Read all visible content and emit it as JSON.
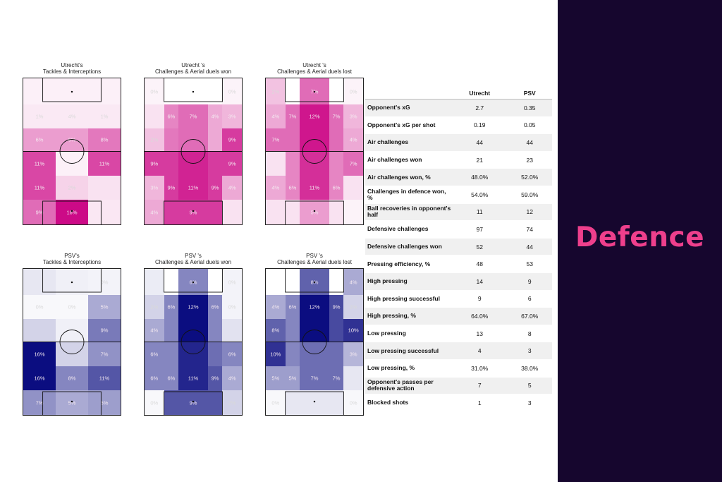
{
  "brand": {
    "title": "Defence"
  },
  "panels": [
    {
      "title_line1": "Utrecht's",
      "title_line2": "Tackles & Interceptions",
      "team": "utrecht",
      "rows": [
        [
          {
            "v": "",
            "s": 0.06
          },
          {
            "v": "",
            "s": 0.06
          },
          {
            "v": "",
            "s": 0.06
          }
        ],
        [
          {
            "v": "1%",
            "s": 0.09
          },
          {
            "v": "4%",
            "s": 0.09
          },
          {
            "v": "1%",
            "s": 0.09
          }
        ],
        [
          {
            "v": "6%",
            "s": 0.4
          },
          {
            "v": "6%",
            "s": 0.4
          },
          {
            "v": "8%",
            "s": 0.55
          }
        ],
        [
          {
            "v": "11%",
            "s": 0.75
          },
          {
            "v": "",
            "s": 0.06
          },
          {
            "v": "11%",
            "s": 0.75
          }
        ],
        [
          {
            "v": "11%",
            "s": 0.75
          },
          {
            "v": "2%",
            "s": 0.18
          },
          {
            "v": "",
            "s": 0.12
          }
        ],
        [
          {
            "v": "9%",
            "s": 0.6
          },
          {
            "v": "18%",
            "s": 1.0
          },
          {
            "v": "",
            "s": 0.1
          }
        ]
      ]
    },
    {
      "title_line1": "Utrecht 's",
      "title_line2": "Challenges & Aerial duels won",
      "team": "utrecht",
      "rows": [
        [
          {
            "v": "0%",
            "s": 0.05
          },
          {
            "v": "",
            "s": 0.0
          },
          {
            "v": "",
            "s": 0.0
          },
          {
            "v": "",
            "s": 0.0
          },
          {
            "v": "0%",
            "s": 0.05
          }
        ],
        [
          {
            "v": "",
            "s": 0.12
          },
          {
            "v": "6%",
            "s": 0.5
          },
          {
            "v": "7%",
            "s": 0.6
          },
          {
            "v": "4%",
            "s": 0.35
          },
          {
            "v": "3%",
            "s": 0.3
          }
        ],
        [
          {
            "v": "2%",
            "s": 0.25
          },
          {
            "v": "",
            "s": 0.55
          },
          {
            "v": "",
            "s": 0.6
          },
          {
            "v": "",
            "s": 0.35
          },
          {
            "v": "9%",
            "s": 0.8
          }
        ],
        [
          {
            "v": "9%",
            "s": 0.8
          },
          {
            "v": "",
            "s": 0.8
          },
          {
            "v": "",
            "s": 0.9
          },
          {
            "v": "",
            "s": 0.8
          },
          {
            "v": "9%",
            "s": 0.8
          }
        ],
        [
          {
            "v": "3%",
            "s": 0.3
          },
          {
            "v": "9%",
            "s": 0.8
          },
          {
            "v": "11%",
            "s": 0.9
          },
          {
            "v": "9%",
            "s": 0.8
          },
          {
            "v": "4%",
            "s": 0.35
          }
        ],
        [
          {
            "v": "4%",
            "s": 0.35
          },
          {
            "v": "",
            "s": 0.8
          },
          {
            "v": "9%",
            "s": 0.8
          },
          {
            "v": "",
            "s": 0.8
          },
          {
            "v": "",
            "s": 0.12
          }
        ]
      ]
    },
    {
      "title_line1": "Utrecht 's",
      "title_line2": "Challenges & Aerial duels lost",
      "team": "utrecht",
      "rows": [
        [
          {
            "v": "2%",
            "s": 0.25
          },
          {
            "v": "",
            "s": 0.0
          },
          {
            "v": "7%",
            "s": 0.6
          },
          {
            "v": "",
            "s": 0.0
          },
          {
            "v": "0%",
            "s": 0.05
          }
        ],
        [
          {
            "v": "4%",
            "s": 0.35
          },
          {
            "v": "7%",
            "s": 0.6
          },
          {
            "v": "12%",
            "s": 0.95
          },
          {
            "v": "7%",
            "s": 0.6
          },
          {
            "v": "3%",
            "s": 0.3
          }
        ],
        [
          {
            "v": "7%",
            "s": 0.6
          },
          {
            "v": "",
            "s": 0.6
          },
          {
            "v": "",
            "s": 0.95
          },
          {
            "v": "",
            "s": 0.6
          },
          {
            "v": "4%",
            "s": 0.35
          }
        ],
        [
          {
            "v": "",
            "s": 0.12
          },
          {
            "v": "",
            "s": 0.5
          },
          {
            "v": "",
            "s": 0.85
          },
          {
            "v": "",
            "s": 0.5
          },
          {
            "v": "7%",
            "s": 0.6
          }
        ],
        [
          {
            "v": "4%",
            "s": 0.35
          },
          {
            "v": "6%",
            "s": 0.5
          },
          {
            "v": "11%",
            "s": 0.85
          },
          {
            "v": "6%",
            "s": 0.5
          },
          {
            "v": "",
            "s": 0.12
          }
        ],
        [
          {
            "v": "",
            "s": 0.12
          },
          {
            "v": "",
            "s": 0.12
          },
          {
            "v": "5%",
            "s": 0.4
          },
          {
            "v": "",
            "s": 0.12
          },
          {
            "v": "",
            "s": 0.05
          }
        ]
      ]
    },
    {
      "title_line1": "PSV's",
      "title_line2": "Tackles & Interceptions",
      "team": "psv",
      "rows": [
        [
          {
            "v": "",
            "s": 0.1
          },
          {
            "v": "",
            "s": 0.06
          },
          {
            "v": "0%",
            "s": 0.05
          }
        ],
        [
          {
            "v": "0%",
            "s": 0.03
          },
          {
            "v": "0%",
            "s": 0.03
          },
          {
            "v": "5%",
            "s": 0.35
          }
        ],
        [
          {
            "v": "",
            "s": 0.18
          },
          {
            "v": "",
            "s": 0.06
          },
          {
            "v": "9%",
            "s": 0.55
          }
        ],
        [
          {
            "v": "16%",
            "s": 1.0
          },
          {
            "v": "",
            "s": 0.18
          },
          {
            "v": "7%",
            "s": 0.45
          }
        ],
        [
          {
            "v": "16%",
            "s": 1.0
          },
          {
            "v": "8%",
            "s": 0.5
          },
          {
            "v": "11%",
            "s": 0.7
          }
        ],
        [
          {
            "v": "7%",
            "s": 0.45
          },
          {
            "v": "5%",
            "s": 0.35
          },
          {
            "v": "6%",
            "s": 0.4
          }
        ]
      ]
    },
    {
      "title_line1": "PSV 's",
      "title_line2": "Challenges & Aerial duels won",
      "team": "psv",
      "rows": [
        [
          {
            "v": "",
            "s": 0.08
          },
          {
            "v": "",
            "s": 0.0
          },
          {
            "v": "6%",
            "s": 0.5
          },
          {
            "v": "",
            "s": 0.0
          },
          {
            "v": "0%",
            "s": 0.05
          }
        ],
        [
          {
            "v": "2%",
            "s": 0.18
          },
          {
            "v": "6%",
            "s": 0.5
          },
          {
            "v": "12%",
            "s": 1.0
          },
          {
            "v": "6%",
            "s": 0.5
          },
          {
            "v": "0%",
            "s": 0.05
          }
        ],
        [
          {
            "v": "4%",
            "s": 0.35
          },
          {
            "v": "",
            "s": 0.5
          },
          {
            "v": "",
            "s": 1.0
          },
          {
            "v": "",
            "s": 0.5
          },
          {
            "v": "",
            "s": 0.12
          }
        ],
        [
          {
            "v": "6%",
            "s": 0.5
          },
          {
            "v": "",
            "s": 0.5
          },
          {
            "v": "",
            "s": 0.9
          },
          {
            "v": "",
            "s": 0.6
          },
          {
            "v": "6%",
            "s": 0.5
          }
        ],
        [
          {
            "v": "6%",
            "s": 0.5
          },
          {
            "v": "6%",
            "s": 0.5
          },
          {
            "v": "11%",
            "s": 0.9
          },
          {
            "v": "9%",
            "s": 0.7
          },
          {
            "v": "4%",
            "s": 0.35
          }
        ],
        [
          {
            "v": "0%",
            "s": 0.03
          },
          {
            "v": "",
            "s": 0.7
          },
          {
            "v": "9%",
            "s": 0.7
          },
          {
            "v": "",
            "s": 0.7
          },
          {
            "v": "2%",
            "s": 0.18
          }
        ]
      ]
    },
    {
      "title_line1": "PSV 's",
      "title_line2": "Challenges & Aerial duels lost",
      "team": "psv",
      "rows": [
        [
          {
            "v": "",
            "s": 0.0
          },
          {
            "v": "",
            "s": 0.0
          },
          {
            "v": "8%",
            "s": 0.65
          },
          {
            "v": "",
            "s": 0.0
          },
          {
            "v": "4%",
            "s": 0.35
          }
        ],
        [
          {
            "v": "4%",
            "s": 0.35
          },
          {
            "v": "6%",
            "s": 0.5
          },
          {
            "v": "12%",
            "s": 1.0
          },
          {
            "v": "9%",
            "s": 0.75
          },
          {
            "v": "2%",
            "s": 0.18
          }
        ],
        [
          {
            "v": "8%",
            "s": 0.65
          },
          {
            "v": "",
            "s": 0.5
          },
          {
            "v": "",
            "s": 1.0
          },
          {
            "v": "",
            "s": 0.75
          },
          {
            "v": "10%",
            "s": 0.85
          }
        ],
        [
          {
            "v": "10%",
            "s": 0.85
          },
          {
            "v": "",
            "s": 0.5
          },
          {
            "v": "",
            "s": 0.6
          },
          {
            "v": "",
            "s": 0.6
          },
          {
            "v": "3%",
            "s": 0.3
          }
        ],
        [
          {
            "v": "5%",
            "s": 0.4
          },
          {
            "v": "5%",
            "s": 0.4
          },
          {
            "v": "7%",
            "s": 0.6
          },
          {
            "v": "7%",
            "s": 0.6
          },
          {
            "v": "",
            "s": 0.1
          }
        ],
        [
          {
            "v": "0%",
            "s": 0.03
          },
          {
            "v": "",
            "s": 0.1
          },
          {
            "v": "",
            "s": 0.1
          },
          {
            "v": "",
            "s": 0.1
          },
          {
            "v": "0%",
            "s": 0.03
          }
        ]
      ]
    }
  ],
  "colors": {
    "utrecht": "#cc0a87",
    "psv": "#0b0d80",
    "brand": "#ee3f8c",
    "sidebar": "#16062e"
  },
  "stats": {
    "headers": [
      "",
      "Utrecht",
      "PSV"
    ],
    "rows": [
      [
        "Opponent's xG",
        "2.7",
        "0.35"
      ],
      [
        "Opponent's xG per shot",
        "0.19",
        "0.05"
      ],
      [
        "Air challenges",
        "44",
        "44"
      ],
      [
        "Air challenges won",
        "21",
        "23"
      ],
      [
        "Air challenges won, %",
        "48.0%",
        "52.0%"
      ],
      [
        "Challenges in defence won, %",
        "54.0%",
        "59.0%"
      ],
      [
        "Ball recoveries in opponent's half",
        "11",
        "12"
      ],
      [
        "Defensive challenges",
        "97",
        "74"
      ],
      [
        "Defensive challenges won",
        "52",
        "44"
      ],
      [
        "Pressing efficiency, %",
        "48",
        "53"
      ],
      [
        "High pressing",
        "14",
        "9"
      ],
      [
        "High pressing successful",
        "9",
        "6"
      ],
      [
        "High pressing, %",
        "64.0%",
        "67.0%"
      ],
      [
        "Low pressing",
        "13",
        "8"
      ],
      [
        "Low pressing successful",
        "4",
        "3"
      ],
      [
        "Low pressing, %",
        "31.0%",
        "38.0%"
      ],
      [
        "Opponent's passes per defensive action",
        "7",
        "5"
      ],
      [
        "Blocked shots",
        "1",
        "3"
      ]
    ]
  }
}
